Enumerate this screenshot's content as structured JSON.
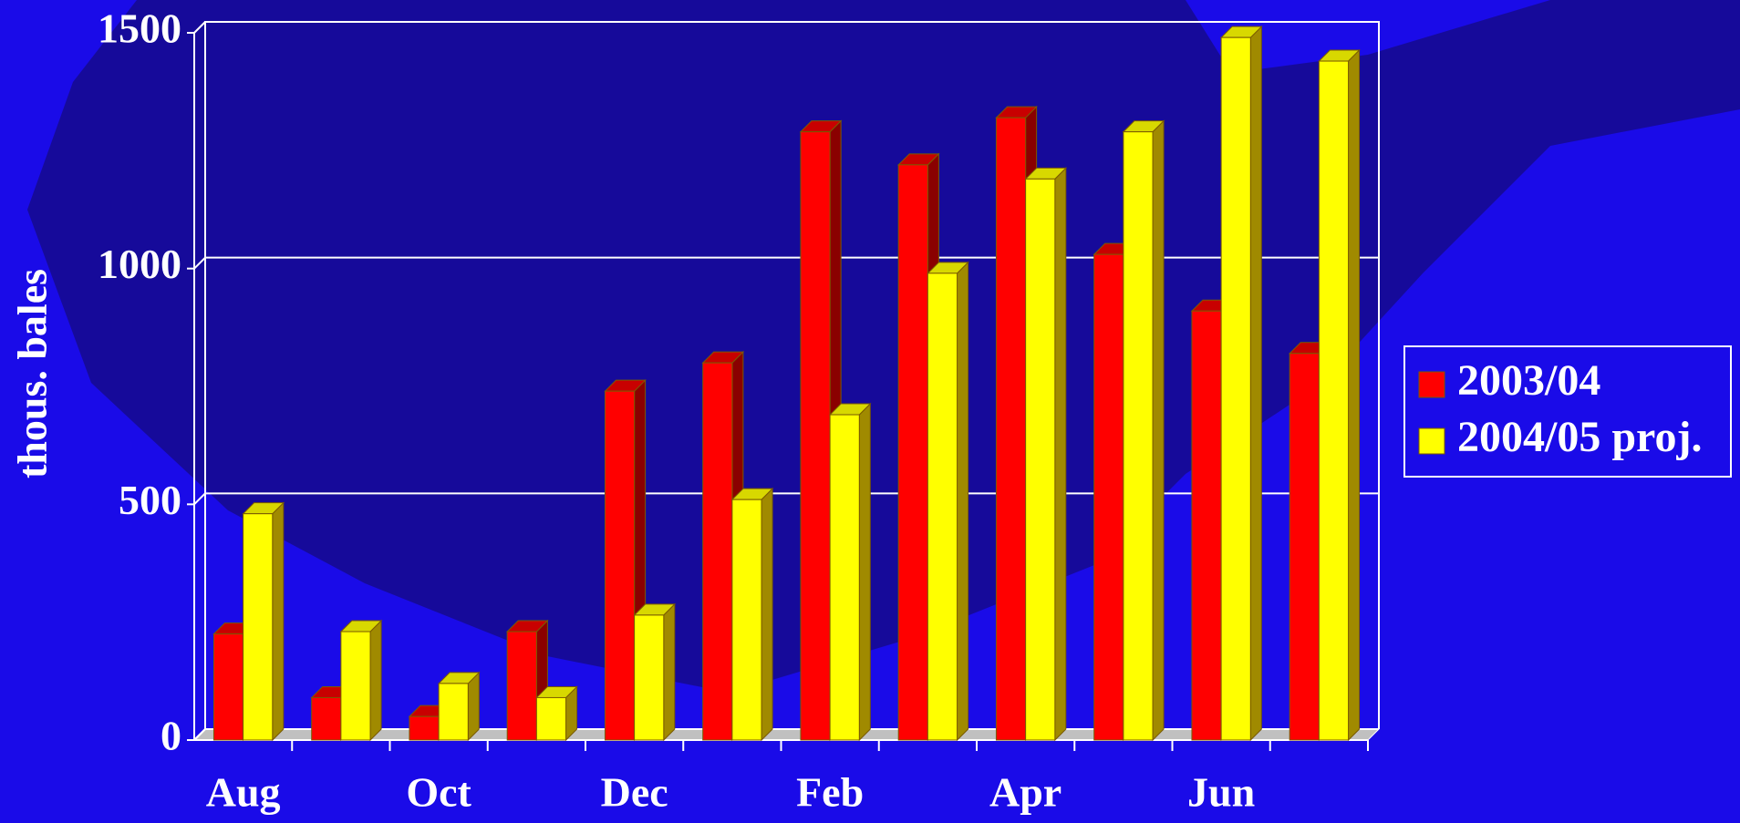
{
  "chart_data": {
    "type": "bar",
    "y_label": "thous. bales",
    "categories": [
      "Aug",
      null,
      "Oct",
      null,
      "Dec",
      null,
      "Feb",
      null,
      "Apr",
      null,
      "Jun",
      null
    ],
    "series": [
      {
        "name": "2003/04",
        "color": "#ff0000",
        "values": [
          225,
          90,
          50,
          230,
          740,
          800,
          1290,
          1220,
          1320,
          1030,
          910,
          820
        ]
      },
      {
        "name": "2004/05 proj.",
        "color": "#ffff00",
        "values": [
          480,
          230,
          120,
          90,
          265,
          510,
          690,
          990,
          1190,
          1290,
          1490,
          1440
        ]
      }
    ],
    "ylim": [
      0,
      1500
    ],
    "yticks": [
      0,
      500,
      1000,
      1500
    ],
    "grid": true,
    "legend": "right"
  }
}
